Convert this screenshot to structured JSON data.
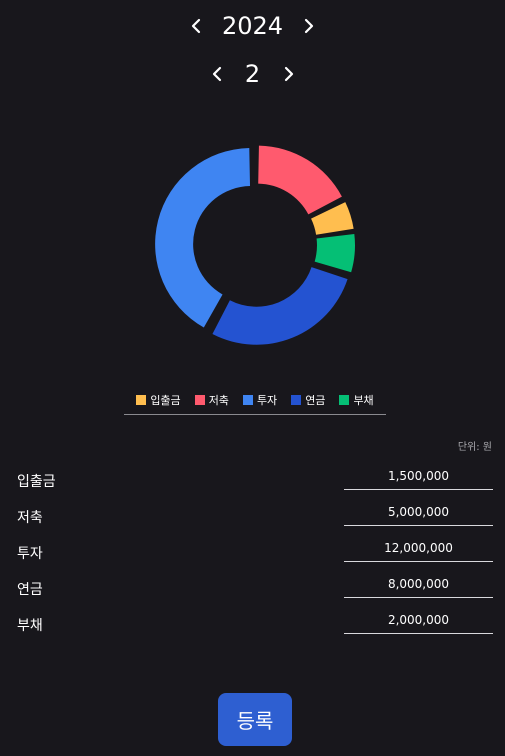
{
  "year": {
    "value": "2024"
  },
  "month": {
    "value": "2"
  },
  "chart_data": {
    "type": "pie",
    "categories": [
      "입출금",
      "저축",
      "투자",
      "연금",
      "부채"
    ],
    "values": [
      1500000,
      5000000,
      12000000,
      8000000,
      2000000
    ],
    "display_order": [
      "저축",
      "입출금",
      "부채",
      "연금",
      "투자"
    ],
    "colors": {
      "입출금": "#ffbe4f",
      "저축": "#ff5a6e",
      "투자": "#3f85f2",
      "연금": "#2453d1",
      "부채": "#05bf75"
    },
    "legend": "bottom",
    "unit": "단위: 원"
  },
  "legend_items": [
    {
      "label": "입출금",
      "color": "#ffbe4f"
    },
    {
      "label": "저축",
      "color": "#ff5a6e"
    },
    {
      "label": "투자",
      "color": "#3f85f2"
    },
    {
      "label": "연금",
      "color": "#2453d1"
    },
    {
      "label": "부채",
      "color": "#05bf75"
    }
  ],
  "unit_note": "단위: 원",
  "entries": [
    {
      "label": "입출금",
      "value": "1,500,000"
    },
    {
      "label": "저축",
      "value": "5,000,000"
    },
    {
      "label": "투자",
      "value": "12,000,000"
    },
    {
      "label": "연금",
      "value": "8,000,000"
    },
    {
      "label": "부채",
      "value": "2,000,000"
    }
  ],
  "submit_label": "등록",
  "icons": {
    "prev": "chevron-left-icon",
    "next": "chevron-right-icon"
  }
}
